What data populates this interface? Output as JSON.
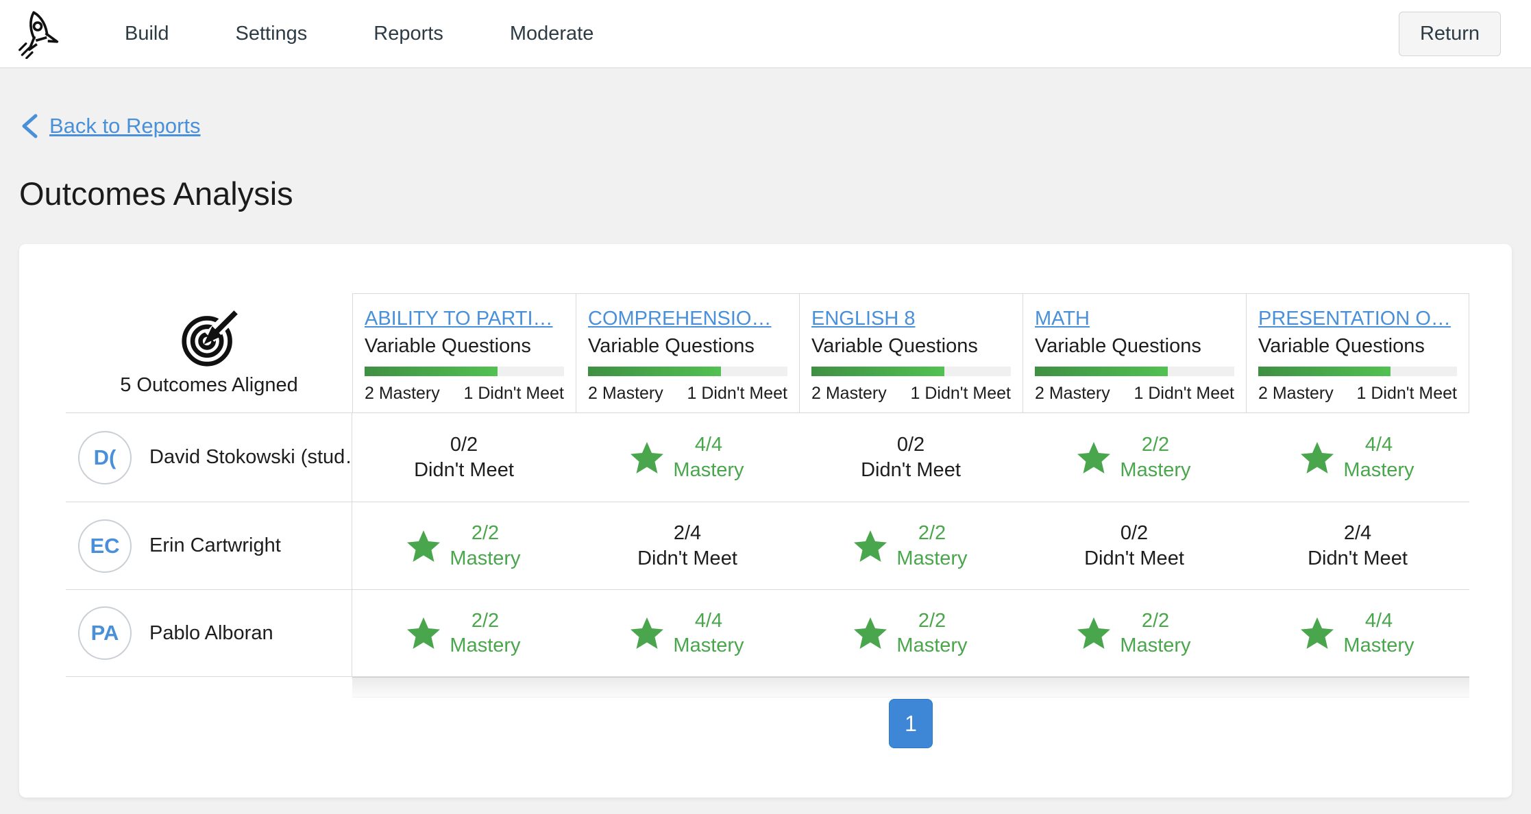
{
  "colors": {
    "link_blue": "#4a90d9",
    "success_green": "#4aa64c",
    "ink": "#2d3b45",
    "pagination_blue": "#3d87d6"
  },
  "icons": {
    "logo": "rocket-icon",
    "back": "chevron-left-icon",
    "aligned": "target-icon",
    "mastery": "star-icon"
  },
  "nav": {
    "items": [
      {
        "label": "Build"
      },
      {
        "label": "Settings"
      },
      {
        "label": "Reports"
      },
      {
        "label": "Moderate"
      }
    ],
    "return_label": "Return"
  },
  "page": {
    "back_link": "Back to Reports",
    "title": "Outcomes Analysis"
  },
  "table": {
    "aligned_label": "5 Outcomes Aligned",
    "outcomes": [
      {
        "name": "ABILITY TO PARTI…",
        "subtitle": "Variable Questions",
        "mastery_count": "2 Mastery",
        "didnt_meet_count": "1 Didn't Meet",
        "progress_pct": 66.7
      },
      {
        "name": "COMPREHENSIO…",
        "subtitle": "Variable Questions",
        "mastery_count": "2 Mastery",
        "didnt_meet_count": "1 Didn't Meet",
        "progress_pct": 66.7
      },
      {
        "name": "ENGLISH 8",
        "subtitle": "Variable Questions",
        "mastery_count": "2 Mastery",
        "didnt_meet_count": "1 Didn't Meet",
        "progress_pct": 66.7
      },
      {
        "name": "MATH",
        "subtitle": "Variable Questions",
        "mastery_count": "2 Mastery",
        "didnt_meet_count": "1 Didn't Meet",
        "progress_pct": 66.7
      },
      {
        "name": "PRESENTATION O…",
        "subtitle": "Variable Questions",
        "mastery_count": "2 Mastery",
        "didnt_meet_count": "1 Didn't Meet",
        "progress_pct": 66.7
      }
    ],
    "students": [
      {
        "initials": "D(",
        "name": "David Stokowski (stud…",
        "results": [
          {
            "score": "0/2",
            "label": "Didn't Meet",
            "mastery": false
          },
          {
            "score": "4/4",
            "label": "Mastery",
            "mastery": true
          },
          {
            "score": "0/2",
            "label": "Didn't Meet",
            "mastery": false
          },
          {
            "score": "2/2",
            "label": "Mastery",
            "mastery": true
          },
          {
            "score": "4/4",
            "label": "Mastery",
            "mastery": true
          }
        ]
      },
      {
        "initials": "EC",
        "name": "Erin Cartwright",
        "results": [
          {
            "score": "2/2",
            "label": "Mastery",
            "mastery": true
          },
          {
            "score": "2/4",
            "label": "Didn't Meet",
            "mastery": false
          },
          {
            "score": "2/2",
            "label": "Mastery",
            "mastery": true
          },
          {
            "score": "0/2",
            "label": "Didn't Meet",
            "mastery": false
          },
          {
            "score": "2/4",
            "label": "Didn't Meet",
            "mastery": false
          }
        ]
      },
      {
        "initials": "PA",
        "name": "Pablo Alboran",
        "results": [
          {
            "score": "2/2",
            "label": "Mastery",
            "mastery": true
          },
          {
            "score": "4/4",
            "label": "Mastery",
            "mastery": true
          },
          {
            "score": "2/2",
            "label": "Mastery",
            "mastery": true
          },
          {
            "score": "2/2",
            "label": "Mastery",
            "mastery": true
          },
          {
            "score": "4/4",
            "label": "Mastery",
            "mastery": true
          }
        ]
      }
    ],
    "pagination": {
      "current_page": "1"
    }
  }
}
